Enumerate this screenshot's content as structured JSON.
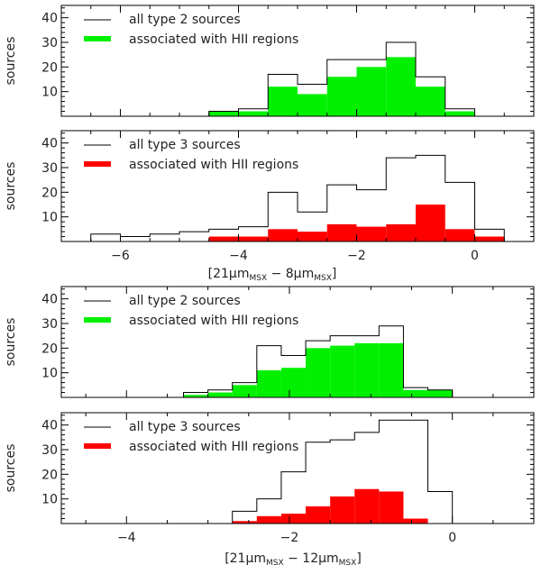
{
  "colors": {
    "green": "#00f000",
    "red": "#ff0000",
    "line": "#000000"
  },
  "chart_data": [
    {
      "id": "p1",
      "type": "bar",
      "group": "top",
      "ylabel": "sources",
      "xlabel_main": "[21μm",
      "xlabel_sub1": "MSX",
      "xlabel_mid": " − 8μm",
      "xlabel_sub2": "MSX",
      "xlabel_end": "]",
      "xlim": [
        -7.0,
        1.0
      ],
      "ylim": [
        0,
        45
      ],
      "yticks": [
        10,
        20,
        30,
        40
      ],
      "xticks": [
        -6,
        -4,
        -2,
        0
      ],
      "show_xtick_labels": false,
      "bin_edges": [
        -4.5,
        -4.0,
        -3.5,
        -3.0,
        -2.5,
        -2.0,
        -1.5,
        -1.0,
        -0.5,
        0.0
      ],
      "series": [
        {
          "name": "all type 2 sources",
          "style": "outline",
          "values": [
            2,
            3,
            17,
            13,
            23,
            23,
            30,
            16,
            3
          ]
        },
        {
          "name": "associated with HII regions",
          "style": "fill",
          "color": "green",
          "values": [
            2,
            2,
            12,
            9,
            16,
            20,
            24,
            12,
            2
          ]
        }
      ]
    },
    {
      "id": "p2",
      "type": "bar",
      "group": "top",
      "ylabel": "sources",
      "xlim": [
        -7.0,
        1.0
      ],
      "ylim": [
        0,
        45
      ],
      "yticks": [
        10,
        20,
        30,
        40
      ],
      "xticks": [
        -6,
        -4,
        -2,
        0
      ],
      "xtick_labels": [
        "−6",
        "−4",
        "−2",
        "0"
      ],
      "show_xtick_labels": true,
      "bin_edges": [
        -6.5,
        -6.0,
        -5.5,
        -5.0,
        -4.5,
        -4.0,
        -3.5,
        -3.0,
        -2.5,
        -2.0,
        -1.5,
        -1.0,
        -0.5,
        0.0,
        0.5
      ],
      "series": [
        {
          "name": "all type 3 sources",
          "style": "outline",
          "values": [
            3,
            2,
            3,
            4,
            5,
            6,
            20,
            12,
            23,
            21,
            34,
            35,
            24,
            5
          ]
        },
        {
          "name": "associated with HII regions",
          "style": "fill",
          "color": "red",
          "values": [
            0,
            0,
            0,
            0,
            2,
            2,
            5,
            4,
            7,
            6,
            7,
            15,
            5,
            2
          ]
        }
      ]
    },
    {
      "id": "p3",
      "type": "bar",
      "group": "bottom",
      "ylabel": "sources",
      "xlim": [
        -4.8,
        1.0
      ],
      "ylim": [
        0,
        45
      ],
      "yticks": [
        10,
        20,
        30,
        40
      ],
      "xticks": [
        -4,
        -2,
        0
      ],
      "show_xtick_labels": false,
      "bin_edges": [
        -4.2,
        -3.9,
        -3.6,
        -3.3,
        -3.0,
        -2.7,
        -2.4,
        -2.1,
        -1.8,
        -1.5,
        -1.2,
        -0.9,
        -0.6,
        -0.3,
        0.0,
        0.3
      ],
      "series": [
        {
          "name": "all type 2 sources",
          "style": "outline",
          "values": [
            0,
            0,
            0,
            2,
            3,
            6,
            21,
            17,
            23,
            25,
            25,
            29,
            4,
            3,
            0
          ]
        },
        {
          "name": "associated with HII regions",
          "style": "fill",
          "color": "green",
          "values": [
            0,
            0,
            0,
            1,
            2,
            5,
            11,
            12,
            20,
            21,
            22,
            22,
            3,
            3,
            0
          ]
        }
      ]
    },
    {
      "id": "p4",
      "type": "bar",
      "group": "bottom",
      "ylabel": "sources",
      "xlim": [
        -4.8,
        1.0
      ],
      "ylim": [
        0,
        45
      ],
      "yticks": [
        10,
        20,
        30,
        40
      ],
      "xticks": [
        -4,
        -2,
        0
      ],
      "xtick_labels": [
        "−4",
        "−2",
        "0"
      ],
      "show_xtick_labels": true,
      "bin_edges": [
        -2.7,
        -2.4,
        -2.1,
        -1.8,
        -1.5,
        -1.2,
        -0.9,
        -0.6,
        -0.3,
        0.0,
        0.3
      ],
      "series": [
        {
          "name": "all type 3 sources",
          "style": "outline",
          "values": [
            5,
            10,
            21,
            33,
            34,
            37,
            42,
            42,
            13,
            0
          ]
        },
        {
          "name": "associated with HII regions",
          "style": "fill",
          "color": "red",
          "values": [
            1,
            3,
            4,
            7,
            11,
            14,
            13,
            2,
            0,
            0
          ]
        }
      ]
    }
  ],
  "top_xlabel": {
    "a": "[21μm",
    "s1": "MSX",
    "b": " − 8μm",
    "s2": "MSX",
    "c": "]"
  },
  "bottom_xlabel": {
    "a": "[21μm",
    "s1": "MSX",
    "b": " − 12μm",
    "s2": "MSX",
    "c": "]"
  }
}
